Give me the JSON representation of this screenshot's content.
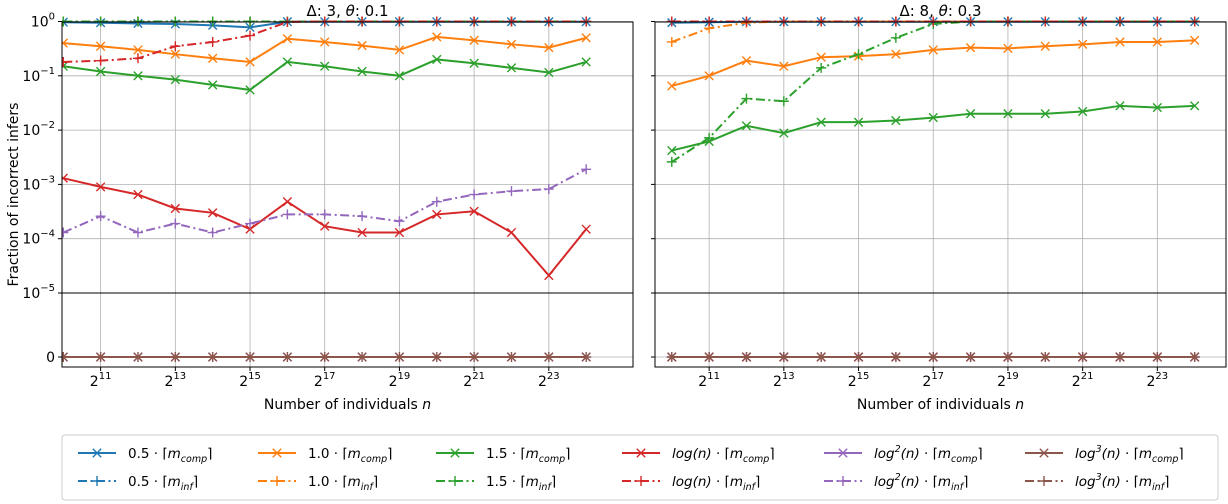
{
  "chart_data": [
    {
      "type": "line",
      "title_pre": "Δ: 3, ",
      "title_theta": "θ",
      "title_post": ": 0.1",
      "xlabel_pre": "Number of individuals ",
      "xlabel_var": "n",
      "ylabel": "Fraction of incorrect infers",
      "xscale": "log2",
      "yscale": "symlog",
      "xlim": [
        1000,
        40000000
      ],
      "xticks": [
        {
          "value": 2048,
          "base": "2",
          "exp": "11"
        },
        {
          "value": 8192,
          "base": "2",
          "exp": "13"
        },
        {
          "value": 32768,
          "base": "2",
          "exp": "15"
        },
        {
          "value": 131072,
          "base": "2",
          "exp": "17"
        },
        {
          "value": 524288,
          "base": "2",
          "exp": "19"
        },
        {
          "value": 2097152,
          "base": "2",
          "exp": "21"
        },
        {
          "value": 8388608,
          "base": "2",
          "exp": "23"
        }
      ],
      "yticks": [
        {
          "value": 0,
          "base": "0",
          "exp": ""
        },
        {
          "value": 1e-05,
          "base": "10",
          "exp": "−5"
        },
        {
          "value": 0.0001,
          "base": "10",
          "exp": "−4"
        },
        {
          "value": 0.001,
          "base": "10",
          "exp": "−3"
        },
        {
          "value": 0.01,
          "base": "10",
          "exp": "−2"
        },
        {
          "value": 0.1,
          "base": "10",
          "exp": "−1"
        },
        {
          "value": 1,
          "base": "10",
          "exp": "0"
        }
      ],
      "x": [
        1024,
        2048,
        4096,
        8192,
        16384,
        32768,
        65536,
        131072,
        262144,
        524288,
        1048576,
        2097152,
        4194304,
        8388608,
        16777216
      ],
      "series": [
        {
          "color": "#1f77b4",
          "style": "solid",
          "marker": "x",
          "values": [
            0.97,
            0.95,
            0.92,
            0.9,
            0.85,
            0.78,
            0.99,
            0.99,
            0.99,
            0.99,
            0.99,
            0.99,
            0.99,
            0.99,
            0.99
          ]
        },
        {
          "color": "#1f77b4",
          "style": "dashdot",
          "marker": "+",
          "values": [
            1.0,
            1.0,
            1.0,
            1.0,
            1.0,
            1.0,
            1.0,
            1.0,
            1.0,
            1.0,
            1.0,
            1.0,
            1.0,
            1.0,
            1.0
          ]
        },
        {
          "color": "#ff7f0e",
          "style": "solid",
          "marker": "x",
          "values": [
            0.4,
            0.35,
            0.3,
            0.25,
            0.21,
            0.18,
            0.48,
            0.42,
            0.36,
            0.3,
            0.52,
            0.45,
            0.38,
            0.33,
            0.5
          ]
        },
        {
          "color": "#ff7f0e",
          "style": "dashdot",
          "marker": "+",
          "values": [
            1.0,
            1.0,
            1.0,
            1.0,
            1.0,
            1.0,
            1.0,
            1.0,
            1.0,
            1.0,
            1.0,
            1.0,
            1.0,
            1.0,
            1.0
          ]
        },
        {
          "color": "#2ca02c",
          "style": "solid",
          "marker": "x",
          "values": [
            0.15,
            0.12,
            0.1,
            0.085,
            0.068,
            0.055,
            0.18,
            0.15,
            0.12,
            0.1,
            0.2,
            0.17,
            0.14,
            0.115,
            0.18
          ]
        },
        {
          "color": "#2ca02c",
          "style": "dashdot",
          "marker": "+",
          "values": [
            1.0,
            1.0,
            1.0,
            1.0,
            1.0,
            1.0,
            1.0,
            1.0,
            1.0,
            1.0,
            1.0,
            1.0,
            1.0,
            1.0,
            1.0
          ]
        },
        {
          "color": "#d62728",
          "style": "solid",
          "marker": "x",
          "values": [
            0.0013,
            0.0009,
            0.00065,
            0.00036,
            0.0003,
            0.00015,
            0.00048,
            0.00017,
            0.00013,
            0.00013,
            0.00028,
            0.00032,
            0.00013,
            2.1e-05,
            0.00015
          ]
        },
        {
          "color": "#d62728",
          "style": "dashdot",
          "marker": "+",
          "values": [
            0.18,
            0.19,
            0.21,
            0.35,
            0.42,
            0.55,
            0.98,
            1.0,
            1.0,
            1.0,
            1.0,
            1.0,
            1.0,
            1.0,
            1.0
          ]
        },
        {
          "color": "#9467bd",
          "style": "solid",
          "marker": "x",
          "values": [
            0,
            0,
            0,
            0,
            0,
            0,
            0,
            0,
            0,
            0,
            0,
            0,
            0,
            0,
            0
          ]
        },
        {
          "color": "#9467bd",
          "style": "dashdot",
          "marker": "+",
          "values": [
            0.00013,
            0.00026,
            0.00013,
            0.00019,
            0.00013,
            0.00019,
            0.00028,
            0.00028,
            0.00026,
            0.00021,
            0.00048,
            0.00065,
            0.00075,
            0.00082,
            0.0019
          ]
        },
        {
          "color": "#8c564b",
          "style": "solid",
          "marker": "x",
          "values": [
            0,
            0,
            0,
            0,
            0,
            0,
            0,
            0,
            0,
            0,
            0,
            0,
            0,
            0,
            0
          ]
        },
        {
          "color": "#8c564b",
          "style": "dashdot",
          "marker": "+",
          "values": [
            0,
            0,
            0,
            0,
            0,
            0,
            0,
            0,
            0,
            0,
            0,
            0,
            0,
            0,
            0
          ]
        }
      ]
    },
    {
      "type": "line",
      "title_pre": "Δ: 8, ",
      "title_theta": "θ",
      "title_post": ": 0.3",
      "xlabel_pre": "Number of individuals ",
      "xlabel_var": "n",
      "ylabel": "",
      "xscale": "log2",
      "yscale": "symlog",
      "xlim": [
        750,
        30000000
      ],
      "xticks": [
        {
          "value": 2048,
          "base": "2",
          "exp": "11"
        },
        {
          "value": 8192,
          "base": "2",
          "exp": "13"
        },
        {
          "value": 32768,
          "base": "2",
          "exp": "15"
        },
        {
          "value": 131072,
          "base": "2",
          "exp": "17"
        },
        {
          "value": 524288,
          "base": "2",
          "exp": "19"
        },
        {
          "value": 2097152,
          "base": "2",
          "exp": "21"
        },
        {
          "value": 8388608,
          "base": "2",
          "exp": "23"
        }
      ],
      "yticks": [],
      "x": [
        1024,
        2048,
        4096,
        8192,
        16384,
        32768,
        65536,
        131072,
        262144,
        524288,
        1048576,
        2097152,
        4194304,
        8388608,
        16777216
      ],
      "series": [
        {
          "color": "#1f77b4",
          "style": "solid",
          "marker": "x",
          "values": [
            0.95,
            0.97,
            0.99,
            0.99,
            0.99,
            0.99,
            0.99,
            0.99,
            0.99,
            0.99,
            0.99,
            0.99,
            0.99,
            0.99,
            0.99
          ]
        },
        {
          "color": "#1f77b4",
          "style": "dashdot",
          "marker": "+",
          "values": [
            1.0,
            1.0,
            1.0,
            1.0,
            1.0,
            1.0,
            1.0,
            1.0,
            1.0,
            1.0,
            1.0,
            1.0,
            1.0,
            1.0,
            1.0
          ]
        },
        {
          "color": "#ff7f0e",
          "style": "solid",
          "marker": "x",
          "values": [
            0.065,
            0.1,
            0.19,
            0.15,
            0.22,
            0.23,
            0.25,
            0.3,
            0.33,
            0.32,
            0.35,
            0.38,
            0.42,
            0.42,
            0.45
          ]
        },
        {
          "color": "#ff7f0e",
          "style": "dashdot",
          "marker": "+",
          "values": [
            0.42,
            0.75,
            0.95,
            1.0,
            1.0,
            1.0,
            1.0,
            1.0,
            1.0,
            1.0,
            1.0,
            1.0,
            1.0,
            1.0,
            1.0
          ]
        },
        {
          "color": "#2ca02c",
          "style": "solid",
          "marker": "x",
          "values": [
            0.0042,
            0.0062,
            0.012,
            0.0088,
            0.014,
            0.014,
            0.015,
            0.017,
            0.02,
            0.02,
            0.02,
            0.022,
            0.028,
            0.026,
            0.028
          ]
        },
        {
          "color": "#2ca02c",
          "style": "dashdot",
          "marker": "+",
          "values": [
            0.0026,
            0.0072,
            0.038,
            0.034,
            0.14,
            0.25,
            0.5,
            0.9,
            1.0,
            1.0,
            1.0,
            1.0,
            1.0,
            1.0,
            1.0
          ]
        },
        {
          "color": "#d62728",
          "style": "solid",
          "marker": "x",
          "values": [
            0,
            0,
            0,
            0,
            0,
            0,
            0,
            0,
            0,
            0,
            0,
            0,
            0,
            0,
            0
          ]
        },
        {
          "color": "#d62728",
          "style": "dashdot",
          "marker": "+",
          "values": [
            1.0,
            1.0,
            1.0,
            1.0,
            1.0,
            1.0,
            1.0,
            1.0,
            1.0,
            1.0,
            1.0,
            1.0,
            1.0,
            1.0,
            1.0
          ]
        },
        {
          "color": "#9467bd",
          "style": "solid",
          "marker": "x",
          "values": [
            0,
            0,
            0,
            0,
            0,
            0,
            0,
            0,
            0,
            0,
            0,
            0,
            0,
            0,
            0
          ]
        },
        {
          "color": "#9467bd",
          "style": "dashdot",
          "marker": "+",
          "values": [
            0,
            0,
            0,
            0,
            0,
            0,
            0,
            0,
            0,
            0,
            0,
            0,
            0,
            0,
            0
          ]
        },
        {
          "color": "#8c564b",
          "style": "solid",
          "marker": "x",
          "values": [
            0,
            0,
            0,
            0,
            0,
            0,
            0,
            0,
            0,
            0,
            0,
            0,
            0,
            0,
            0
          ]
        },
        {
          "color": "#8c564b",
          "style": "dashdot",
          "marker": "+",
          "values": [
            0,
            0,
            0,
            0,
            0,
            0,
            0,
            0,
            0,
            0,
            0,
            0,
            0,
            0,
            0
          ]
        }
      ]
    }
  ],
  "legend": {
    "placement": "bottom",
    "entries": [
      {
        "color": "#1f77b4",
        "style": "solid",
        "marker": "x",
        "factor": "0.5",
        "sub": "comp"
      },
      {
        "color": "#ff7f0e",
        "style": "solid",
        "marker": "x",
        "factor": "1.0",
        "sub": "comp"
      },
      {
        "color": "#2ca02c",
        "style": "solid",
        "marker": "x",
        "factor": "1.5",
        "sub": "comp"
      },
      {
        "color": "#d62728",
        "style": "solid",
        "marker": "x",
        "factor": "log(n)",
        "sup": "",
        "sub": "comp",
        "italic": true
      },
      {
        "color": "#9467bd",
        "style": "solid",
        "marker": "x",
        "factor": "log",
        "sup": "2",
        "arg": "(n)",
        "sub": "comp",
        "italic": true
      },
      {
        "color": "#8c564b",
        "style": "solid",
        "marker": "x",
        "factor": "log",
        "sup": "3",
        "arg": "(n)",
        "sub": "comp",
        "italic": true
      },
      {
        "color": "#1f77b4",
        "style": "dashdot",
        "marker": "+",
        "factor": "0.5",
        "sub": "inf"
      },
      {
        "color": "#ff7f0e",
        "style": "dashdot",
        "marker": "+",
        "factor": "1.0",
        "sub": "inf"
      },
      {
        "color": "#2ca02c",
        "style": "dashdot",
        "marker": "+",
        "factor": "1.5",
        "sub": "inf"
      },
      {
        "color": "#d62728",
        "style": "dashdot",
        "marker": "+",
        "factor": "log(n)",
        "sup": "",
        "sub": "inf",
        "italic": true
      },
      {
        "color": "#9467bd",
        "style": "dashdot",
        "marker": "+",
        "factor": "log",
        "sup": "2",
        "arg": "(n)",
        "sub": "inf",
        "italic": true
      },
      {
        "color": "#8c564b",
        "style": "dashdot",
        "marker": "+",
        "factor": "log",
        "sup": "3",
        "arg": "(n)",
        "sub": "inf",
        "italic": true
      }
    ],
    "dot": "·",
    "ceil_open": "⌈",
    "ceil_close": "⌉",
    "m": "m"
  }
}
